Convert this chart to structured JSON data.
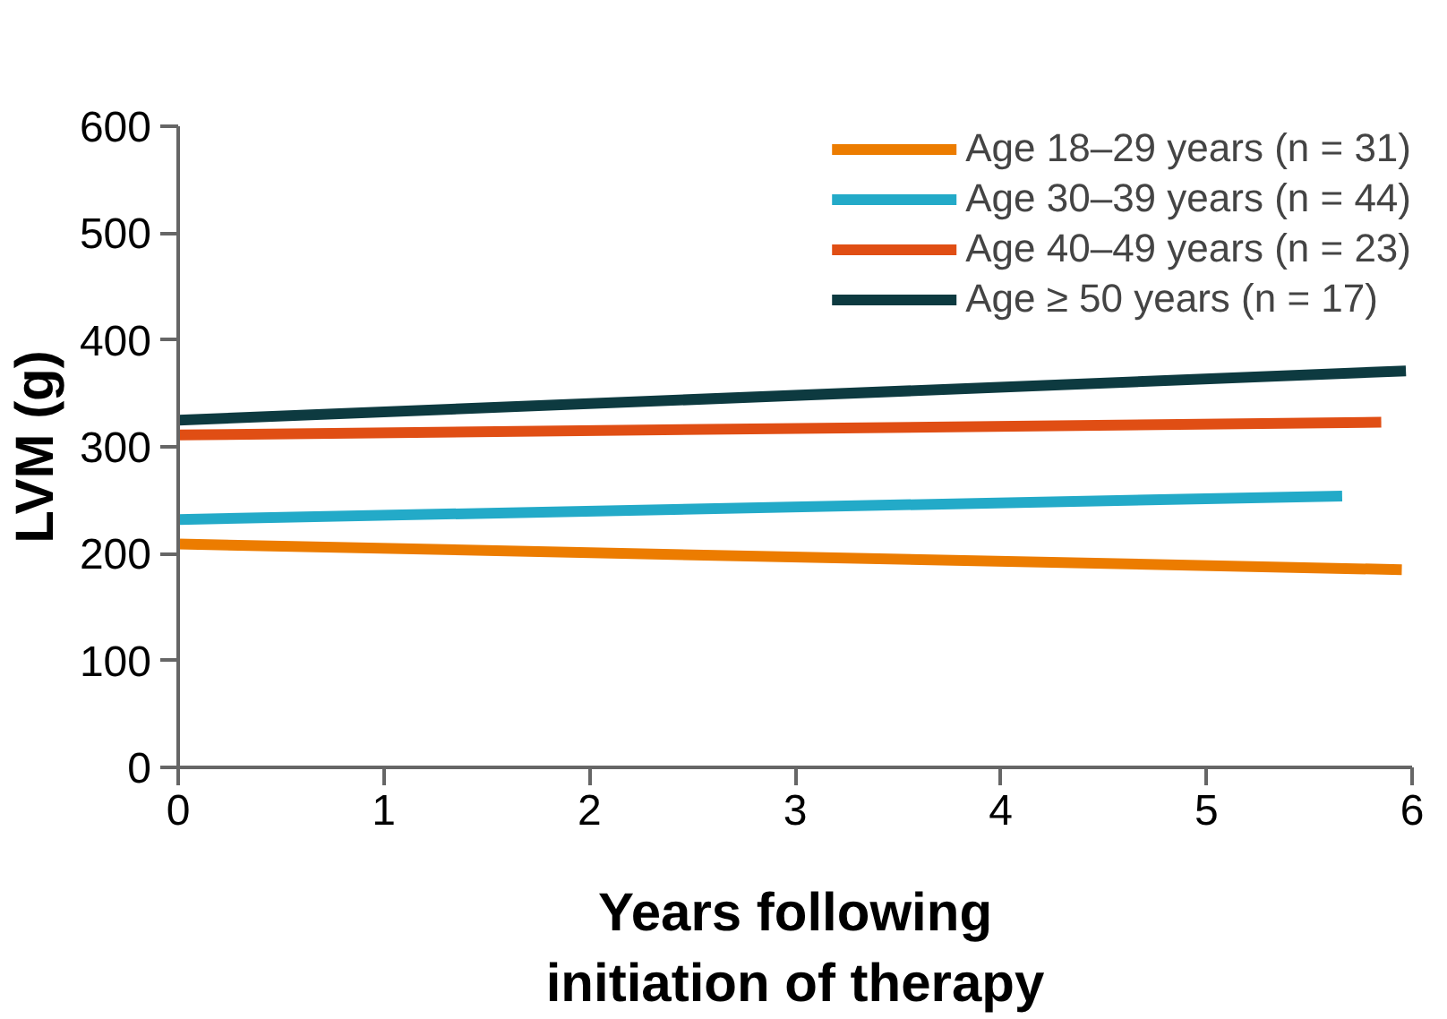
{
  "chart_data": {
    "type": "line",
    "xlabel": "Years following\ninitiation of therapy",
    "ylabel": "LVM (g)",
    "xlim": [
      0,
      6
    ],
    "xticks": [
      0,
      1,
      2,
      3,
      4,
      5,
      6
    ],
    "ylim": [
      0,
      600
    ],
    "yticks": [
      0,
      100,
      200,
      300,
      400,
      500,
      600
    ],
    "grid": false,
    "legend": "top right",
    "marker": "none",
    "line_style": "solid",
    "series": [
      {
        "name": "Age 18–29 years (n = 31)",
        "color": "#ec7c00",
        "x": [
          0,
          5.95
        ],
        "values": [
          209,
          185
        ]
      },
      {
        "name": "Age 30–39 years (n = 44)",
        "color": "#23aac8",
        "x": [
          0,
          5.66
        ],
        "values": [
          232,
          254
        ]
      },
      {
        "name": "Age 40–49 years (n = 23)",
        "color": "#e04e14",
        "x": [
          0,
          5.85
        ],
        "values": [
          311,
          323
        ]
      },
      {
        "name": "Age ≥ 50 years (n = 17)",
        "color": "#0d3a40",
        "x": [
          0,
          5.97
        ],
        "values": [
          325,
          371
        ]
      }
    ]
  }
}
